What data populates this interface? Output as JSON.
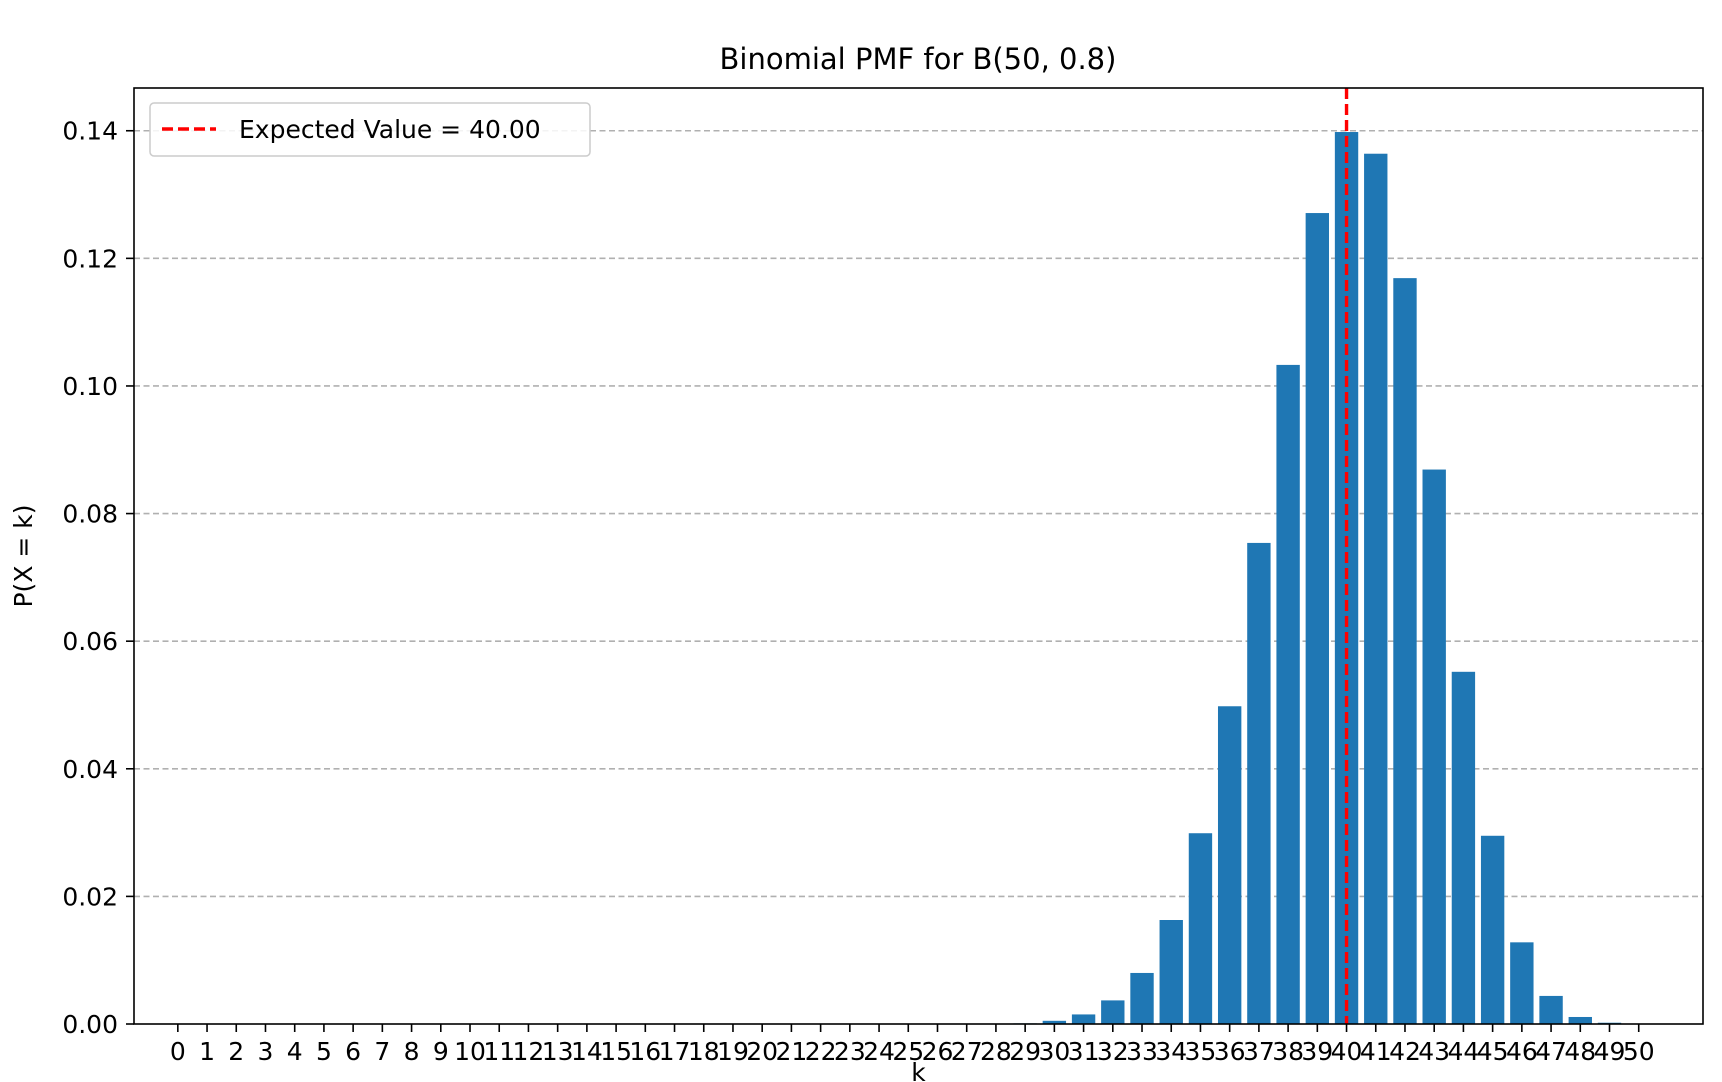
{
  "chart_data": {
    "type": "bar",
    "title": "Binomial PMF for B(50, 0.8)",
    "xlabel": "k",
    "ylabel": "P(X = k)",
    "ylim": [
      0,
      0.1467
    ],
    "xlim": [
      -1.5,
      52.2
    ],
    "yticks": [
      "0.00",
      "0.02",
      "0.04",
      "0.06",
      "0.08",
      "0.10",
      "0.12",
      "0.14"
    ],
    "ytick_values": [
      0,
      0.02,
      0.04,
      0.06,
      0.08,
      0.1,
      0.12,
      0.14
    ],
    "grid": "y-dashed",
    "bar_color": "#1f77b4",
    "categories": [
      "0",
      "1",
      "2",
      "3",
      "4",
      "5",
      "6",
      "7",
      "8",
      "9",
      "10",
      "11",
      "12",
      "13",
      "14",
      "15",
      "16",
      "17",
      "18",
      "19",
      "20",
      "21",
      "22",
      "23",
      "24",
      "25",
      "26",
      "27",
      "28",
      "29",
      "30",
      "31",
      "32",
      "33",
      "34",
      "35",
      "36",
      "37",
      "38",
      "39",
      "40",
      "41",
      "42",
      "43",
      "44",
      "45",
      "46",
      "47",
      "48",
      "49",
      "50"
    ],
    "values": [
      0,
      0,
      0,
      0,
      0,
      0,
      0,
      0,
      0,
      0,
      0,
      0,
      0,
      0,
      0,
      0,
      0,
      0,
      0,
      0,
      0,
      0,
      0,
      0,
      0,
      0,
      0,
      0,
      0,
      0.0001,
      0.0005,
      0.0015,
      0.0037,
      0.008,
      0.0163,
      0.0299,
      0.0498,
      0.0754,
      0.1033,
      0.1271,
      0.1398,
      0.1364,
      0.1169,
      0.0869,
      0.0552,
      0.0295,
      0.0128,
      0.0044,
      0.0011,
      0.0002,
      0.0
    ],
    "expected_line": {
      "x": 40,
      "label": "Expected Value = 40.00",
      "color": "#ff0000"
    },
    "legend_position": "top-left"
  }
}
